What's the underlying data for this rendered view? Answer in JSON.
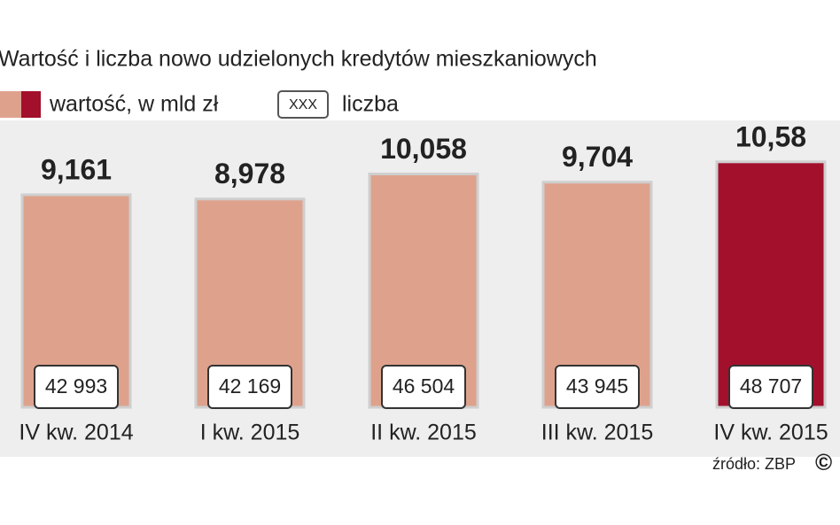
{
  "chart_data": {
    "type": "bar",
    "title": "Wartość i liczba nowo udzielonych kredytów mieszkaniowych",
    "categories": [
      "IV kw. 2014",
      "I kw. 2015",
      "II kw. 2015",
      "III kw. 2015",
      "IV kw. 2015"
    ],
    "series": [
      {
        "name": "wartość, w mld zł",
        "values": [
          9.161,
          8.978,
          10.058,
          9.704,
          10.58
        ],
        "value_labels": [
          "9,161",
          "8,978",
          "10,058",
          "9,704",
          "10,58"
        ],
        "colors": [
          "#dea28c",
          "#dea28c",
          "#dea28c",
          "#dea28c",
          "#a2102c"
        ]
      },
      {
        "name": "liczba",
        "legend_sample": "XXX",
        "values": [
          42993,
          42169,
          46504,
          43945,
          48707
        ],
        "value_labels": [
          "42 993",
          "42 169",
          "46 504",
          "43 945",
          "48 707"
        ]
      }
    ],
    "source": "źródło: ZBP",
    "copyright": "©"
  }
}
